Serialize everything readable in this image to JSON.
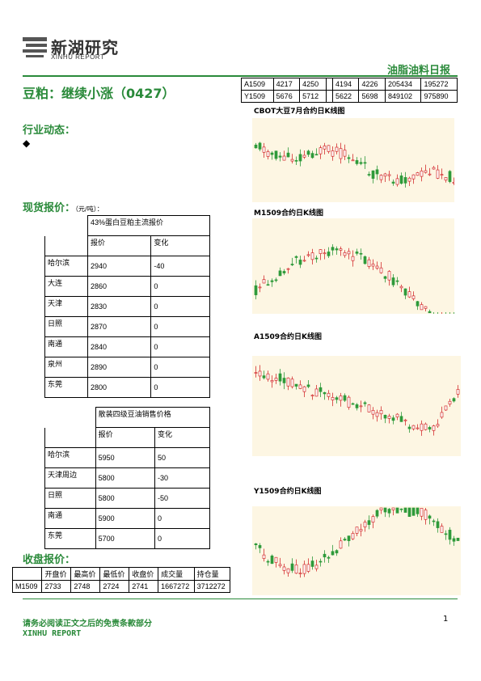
{
  "header": {
    "logo_text": "新湖研究",
    "logo_sub": "XINHU REPORT",
    "report_type": "油脂油料日报"
  },
  "title": "豆粕：继续小涨（0427）",
  "top_table": {
    "rows": [
      [
        "A1509",
        "4217",
        "4250",
        "",
        "4194",
        "4226",
        "205434",
        "195272"
      ],
      [
        "Y1509",
        "5676",
        "5712",
        "",
        "5622",
        "5698",
        "849102",
        "975890"
      ]
    ]
  },
  "sections": {
    "industry": "行业动态：",
    "bullet": "◆",
    "spot": "现货报价：",
    "spot_unit": "（元/吨）：",
    "close": "收盘报价："
  },
  "soy_meal_table": {
    "header": "43%蛋白豆粕主流报价",
    "col_price": "报价",
    "col_change": "变化",
    "rows": [
      {
        "city": "哈尔滨",
        "price": "2940",
        "change": "-40"
      },
      {
        "city": "大连",
        "price": "2860",
        "change": "0"
      },
      {
        "city": "天津",
        "price": "2830",
        "change": "0"
      },
      {
        "city": "日照",
        "price": "2870",
        "change": "0"
      },
      {
        "city": "南通",
        "price": "2840",
        "change": "0"
      },
      {
        "city": "泉州",
        "price": "2890",
        "change": "0"
      },
      {
        "city": "东莞",
        "price": "2800",
        "change": "0"
      }
    ]
  },
  "soy_oil_table": {
    "header": "散装四级豆油销售价格",
    "col_price": "报价",
    "col_change": "变化",
    "rows": [
      {
        "city": "哈尔滨",
        "price": "5950",
        "change": "50"
      },
      {
        "city": "天津周边",
        "price": "5800",
        "change": "-30"
      },
      {
        "city": "日照",
        "price": "5800",
        "change": "-50"
      },
      {
        "city": "南通",
        "price": "5900",
        "change": "0"
      },
      {
        "city": "东莞",
        "price": "5700",
        "change": "0"
      }
    ]
  },
  "close_table": {
    "headers": [
      "",
      "开盘价",
      "最高价",
      "最低价",
      "收盘价",
      "成交量",
      "持仓量"
    ],
    "row": [
      "M1509",
      "2733",
      "2748",
      "2724",
      "2741",
      "1667272",
      "3712272"
    ]
  },
  "charts": {
    "cbot": "CBOT大豆7月合约日K线图",
    "m1509": "M1509合约日K线图",
    "a1509": "A1509合约日K线图",
    "y1509": "Y1509合约日K线图"
  },
  "footer": {
    "note": "请务必阅读正文之后的免责条款部分",
    "brand": "XINHU REPORT",
    "page": "1"
  },
  "colors": {
    "accent": "#2a8a3a",
    "chart_bg": "#fdf6e3",
    "up": "#d32f2f",
    "down": "#2e9a3a"
  }
}
